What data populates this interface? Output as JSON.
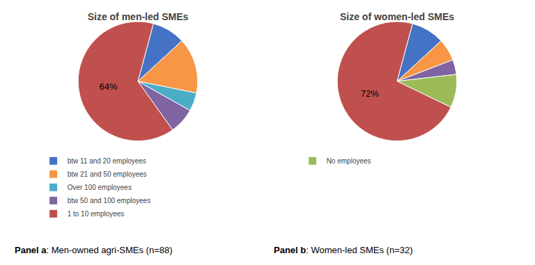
{
  "chart_data": [
    {
      "type": "pie",
      "title": "Size of men-led SMEs",
      "categories": [
        "btw 11 and 20 employees",
        "btw 21 and 50 employees",
        "Over 100 employees",
        "btw 50 and 100 employees",
        "1 to 10 employees"
      ],
      "values": [
        9,
        15,
        5,
        7,
        64
      ],
      "value_labels": [
        null,
        null,
        null,
        null,
        "64%"
      ],
      "colors": [
        "#4472C4",
        "#F79646",
        "#4BACC6",
        "#8064A2",
        "#C0504D"
      ],
      "data_labels": true,
      "legend": "bottom",
      "annotations": [
        "Panel a",
        ": Men-owned agri-SMEs (n=88)"
      ]
    },
    {
      "type": "pie",
      "title": "Size of women-led SMEs",
      "categories": [
        "btw 11 and 20 employees",
        "btw 21 and 50 employees",
        "btw 50 and 100 employees",
        "No employees",
        "1 to 10 employees"
      ],
      "values": [
        9,
        6,
        4,
        9,
        72
      ],
      "value_labels": [
        null,
        null,
        null,
        null,
        "72%"
      ],
      "colors": [
        "#4472C4",
        "#F79646",
        "#8064A2",
        "#9BBB59",
        "#C0504D"
      ],
      "data_labels": true,
      "legend": "bottom",
      "annotations": [
        "Panel b",
        ": Women-led SMEs (n=32)"
      ]
    }
  ]
}
